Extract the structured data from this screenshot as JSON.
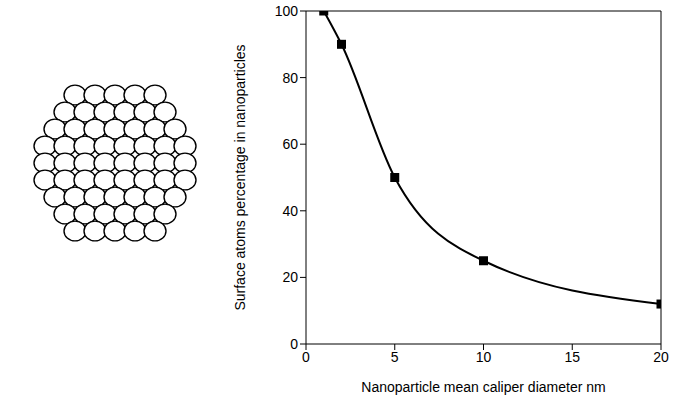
{
  "chart_data": {
    "type": "line",
    "x_label": "Nanoparticle mean caliper diameter nm",
    "y_label": "Surface atoms percentage in nanoparticles",
    "x": [
      1,
      2,
      5,
      10,
      20
    ],
    "series": [
      {
        "name": "Surface atoms percentage",
        "color": "#000000",
        "values": [
          100,
          90,
          50,
          25,
          12
        ],
        "marker": "square",
        "line_style": "solid"
      }
    ],
    "xlim": [
      0,
      20
    ],
    "xticks": [
      0,
      5,
      10,
      15,
      20
    ],
    "ylim": [
      0,
      100
    ],
    "yticks": [
      0,
      20,
      40,
      60,
      80,
      100
    ],
    "grid": false
  }
}
